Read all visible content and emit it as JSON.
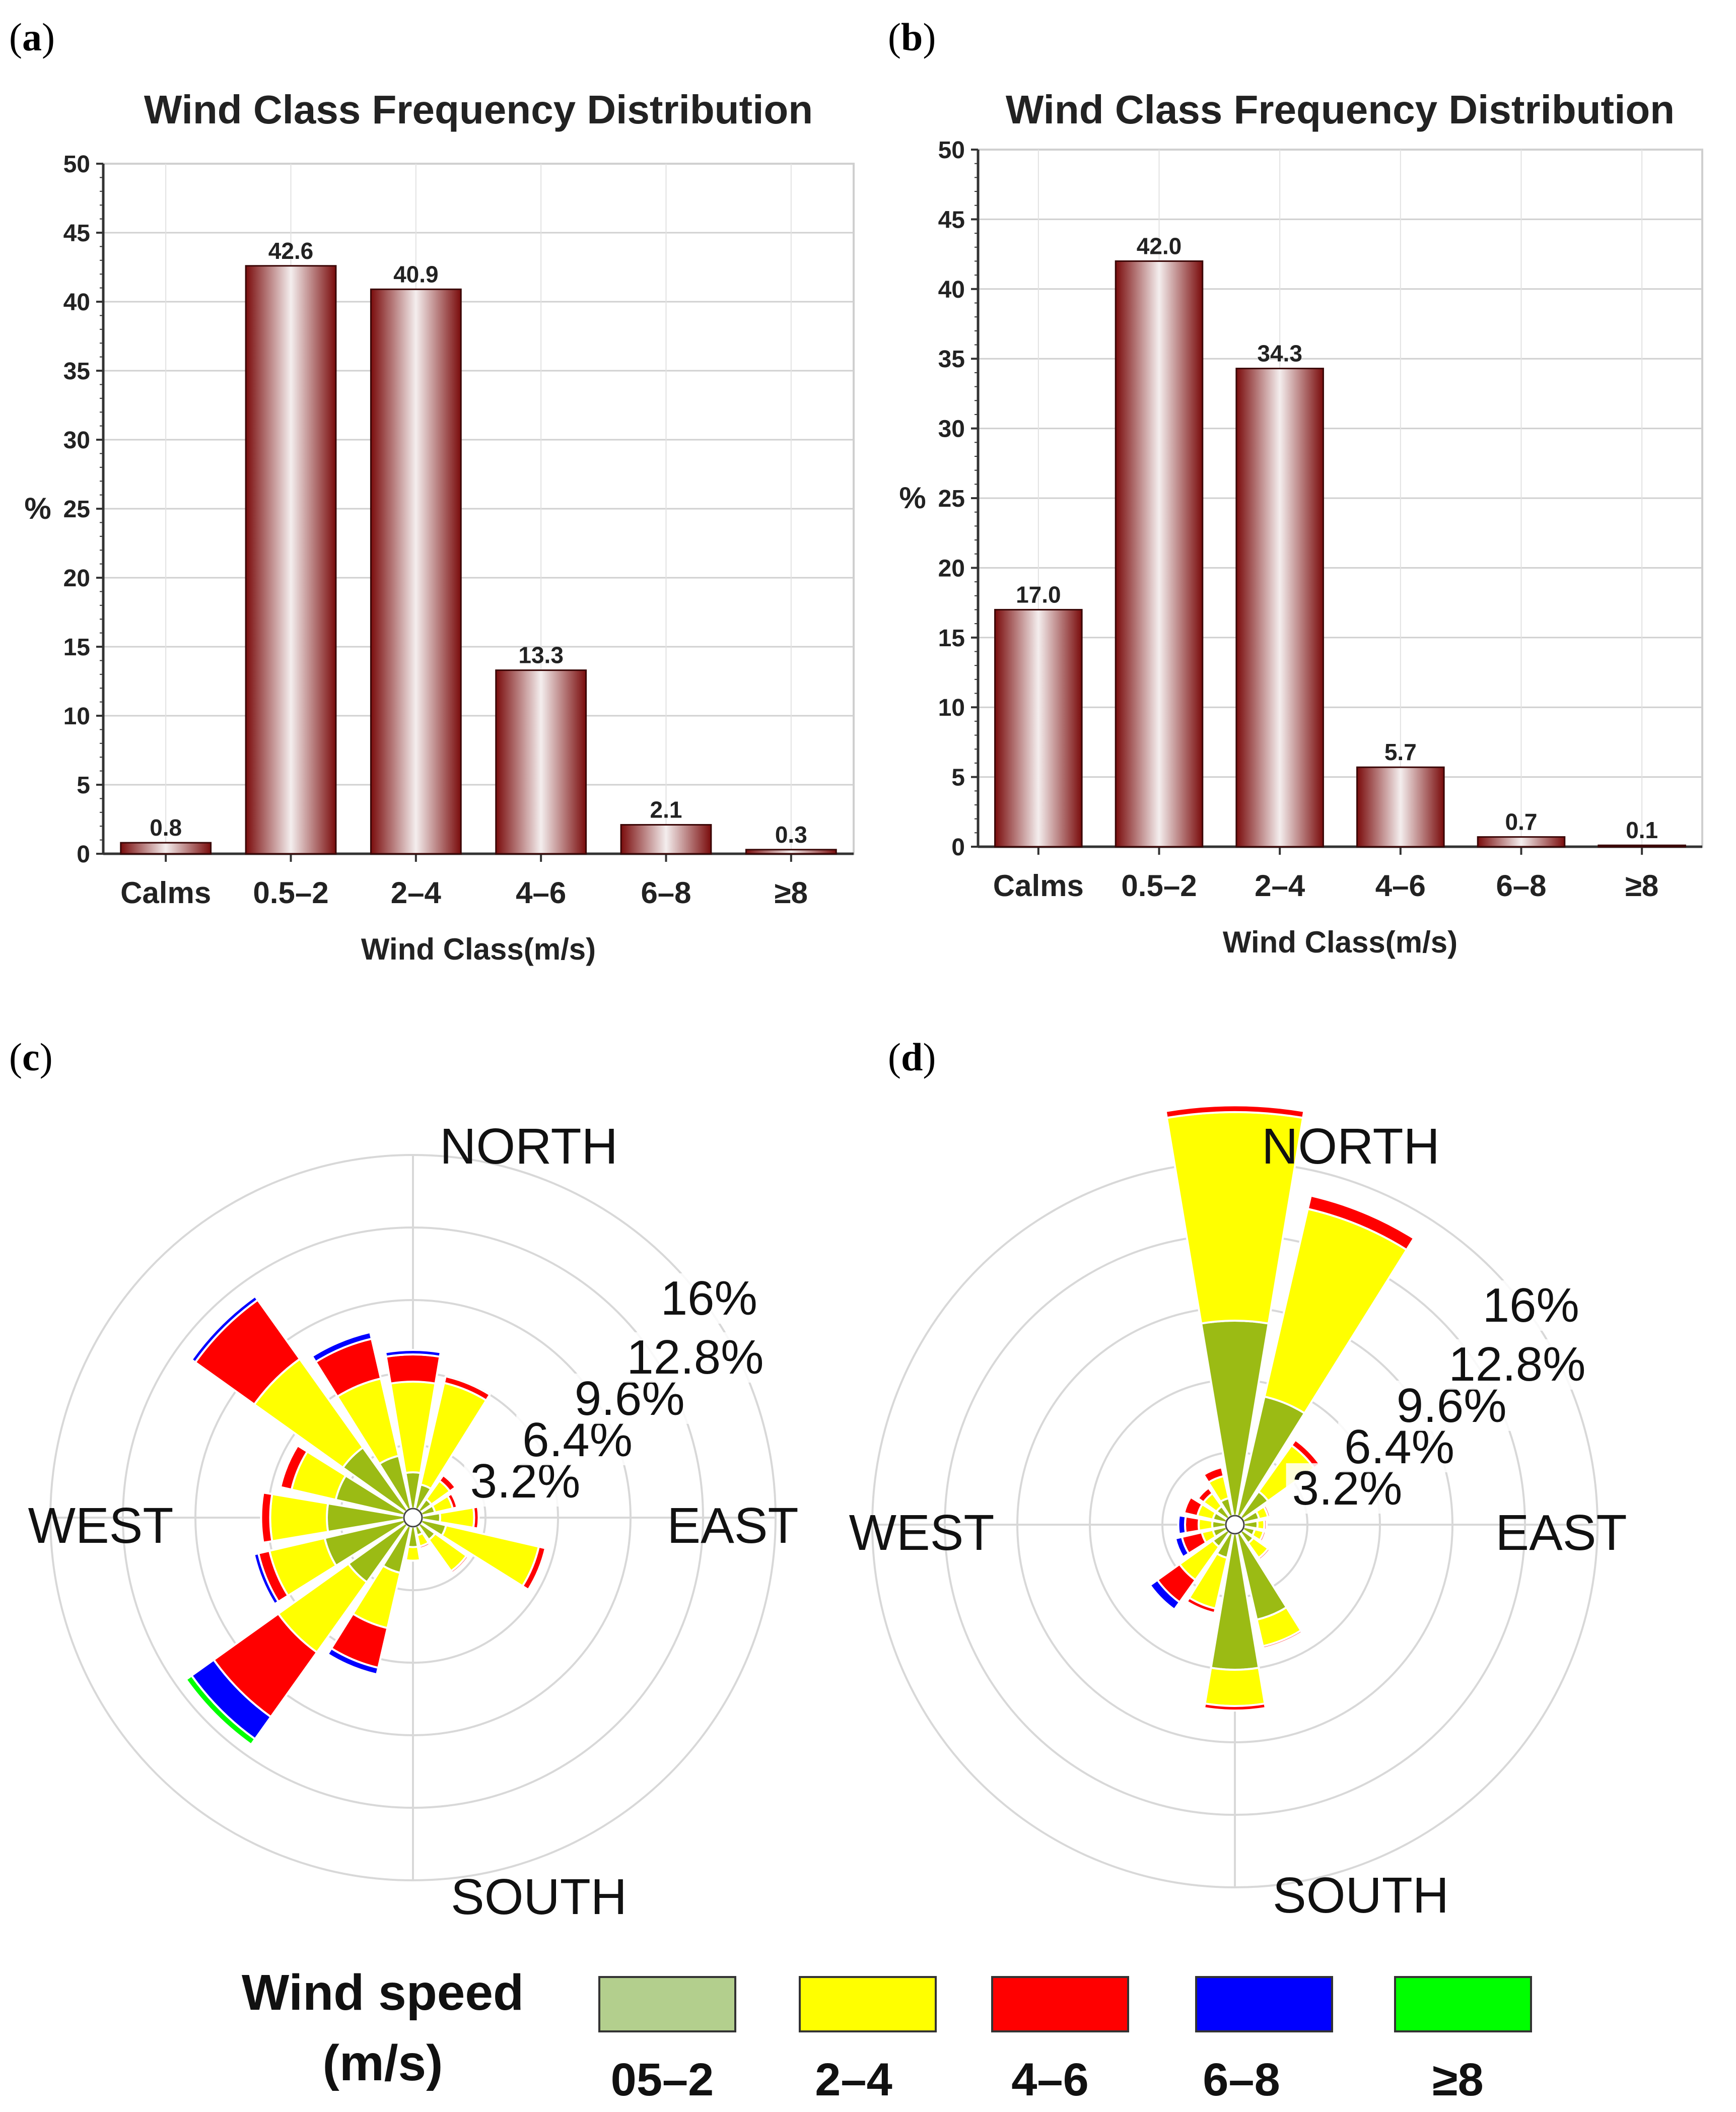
{
  "chart_data": [
    {
      "panel": "(a)",
      "type": "bar",
      "title": "Wind Class Frequency Distribution",
      "xlabel": "Wind Class(m/s)",
      "ylabel": "%",
      "ylim": [
        0,
        50
      ],
      "yticks": [
        0,
        5,
        10,
        15,
        20,
        25,
        30,
        35,
        40,
        45,
        50
      ],
      "categories": [
        "Calms",
        "0.5–2",
        "2–4",
        "4–6",
        "6–8",
        "≥8"
      ],
      "values": [
        0.8,
        42.6,
        40.9,
        13.3,
        2.1,
        0.3
      ],
      "value_labels": [
        "0.8",
        "42.6",
        "40.9",
        "13.3",
        "2.1",
        "0.3"
      ]
    },
    {
      "panel": "(b)",
      "type": "bar",
      "title": "Wind Class Frequency Distribution",
      "xlabel": "Wind Class(m/s)",
      "ylabel": "%",
      "ylim": [
        0,
        50
      ],
      "yticks": [
        0,
        5,
        10,
        15,
        20,
        25,
        30,
        35,
        40,
        45,
        50
      ],
      "categories": [
        "Calms",
        "0.5–2",
        "2–4",
        "4–6",
        "6–8",
        "≥8"
      ],
      "values": [
        17.0,
        42.0,
        34.3,
        5.7,
        0.7,
        0.1
      ],
      "value_labels": [
        "17.0",
        "42.0",
        "34.3",
        "5.7",
        "0.7",
        "0.1"
      ]
    },
    {
      "panel": "(c)",
      "type": "windrose",
      "directions_deg": [
        0,
        22.5,
        45,
        67.5,
        90,
        112.5,
        135,
        157.5,
        180,
        202.5,
        225,
        247.5,
        270,
        292.5,
        315,
        337.5
      ],
      "ring_labels": [
        "3.2%",
        "6.4%",
        "9.6%",
        "12.8%",
        "16%"
      ],
      "ring_values": [
        3.2,
        6.4,
        9.6,
        12.8,
        16
      ],
      "compass_labels": [
        "NORTH",
        "EAST",
        "SOUTH",
        "WEST"
      ],
      "speed_classes": [
        "0.5–2",
        "2–4",
        "4–6",
        "6–8",
        "≥8"
      ],
      "stacked_percent": [
        [
          2.0,
          4.0,
          1.2,
          0.2,
          0.0
        ],
        [
          1.5,
          4.6,
          0.3,
          0.0,
          0.0
        ],
        [
          1.0,
          1.0,
          0.3,
          0.0,
          0.0
        ],
        [
          1.0,
          0.8,
          0.2,
          0.0,
          0.0
        ],
        [
          1.2,
          1.5,
          0.2,
          0.0,
          0.0
        ],
        [
          1.5,
          4.2,
          0.3,
          0.0,
          0.0
        ],
        [
          1.2,
          1.7,
          0.1,
          0.0,
          0.0
        ],
        [
          0.8,
          0.5,
          0.1,
          0.0,
          0.0
        ],
        [
          1.3,
          0.6,
          0.0,
          0.0,
          0.0
        ],
        [
          2.5,
          2.5,
          1.8,
          0.3,
          0.0
        ],
        [
          3.5,
          3.8,
          3.5,
          1.2,
          0.3
        ],
        [
          4.0,
          2.5,
          0.5,
          0.2,
          0.0
        ],
        [
          3.8,
          2.5,
          0.4,
          0.0,
          0.0
        ],
        [
          3.5,
          2.0,
          0.5,
          0.0,
          0.0
        ],
        [
          3.8,
          4.8,
          3.2,
          0.2,
          0.0
        ],
        [
          2.8,
          3.5,
          1.8,
          0.3,
          0.0
        ]
      ]
    },
    {
      "panel": "(d)",
      "type": "windrose",
      "directions_deg": [
        0,
        22.5,
        45,
        67.5,
        90,
        112.5,
        135,
        157.5,
        180,
        202.5,
        225,
        247.5,
        270,
        292.5,
        315,
        337.5
      ],
      "ring_labels": [
        "3.2%",
        "6.4%",
        "9.6%",
        "12.8%",
        "16%"
      ],
      "ring_values": [
        3.2,
        6.4,
        9.6,
        12.8,
        16
      ],
      "compass_labels": [
        "NORTH",
        "EAST",
        "SOUTH",
        "WEST"
      ],
      "speed_classes": [
        "0.5–2",
        "2–4",
        "4–6",
        "6–8",
        "≥8"
      ],
      "stacked_percent": [
        [
          9.0,
          9.2,
          0.3,
          0.0,
          0.0
        ],
        [
          5.8,
          8.5,
          0.6,
          0.0,
          0.0
        ],
        [
          1.8,
          2.5,
          0.3,
          0.0,
          0.0
        ],
        [
          1.1,
          0.4,
          0.1,
          0.0,
          0.0
        ],
        [
          1.0,
          0.3,
          0.1,
          0.0,
          0.0
        ],
        [
          0.9,
          0.4,
          0.1,
          0.0,
          0.0
        ],
        [
          1.0,
          0.8,
          0.1,
          0.0,
          0.0
        ],
        [
          4.3,
          1.2,
          0.1,
          0.0,
          0.0
        ],
        [
          6.4,
          1.6,
          0.2,
          0.0,
          0.0
        ],
        [
          1.5,
          2.3,
          0.2,
          0.0,
          0.0
        ],
        [
          1.2,
          1.8,
          1.2,
          0.4,
          0.0
        ],
        [
          1.0,
          0.5,
          0.9,
          0.3,
          0.0
        ],
        [
          1.0,
          0.6,
          0.6,
          0.3,
          0.0
        ],
        [
          1.0,
          0.7,
          0.6,
          0.0,
          0.0
        ],
        [
          1.0,
          0.7,
          0.3,
          0.0,
          0.0
        ],
        [
          1.2,
          1.0,
          0.4,
          0.0,
          0.0
        ]
      ]
    }
  ],
  "panels": {
    "a": "(a)",
    "b": "(b)",
    "c": "(c)",
    "d": "(d)"
  },
  "legend": {
    "title_line1": "Wind speed",
    "title_line2": "(m/s)",
    "items": [
      {
        "label": "05–2",
        "color": "#b3cf8d"
      },
      {
        "label": "2–4",
        "color": "#ffff00"
      },
      {
        "label": "4–6",
        "color": "#ff0000"
      },
      {
        "label": "6–8",
        "color": "#0000ff"
      },
      {
        "label": "≥8",
        "color": "#00ff00"
      }
    ]
  },
  "colors": {
    "rose": [
      "#9bbb14",
      "#ffff00",
      "#ff0000",
      "#0000ff",
      "#00ff00"
    ],
    "bar_dark": "#7a0c0c",
    "bar_light": "#ffffff"
  }
}
